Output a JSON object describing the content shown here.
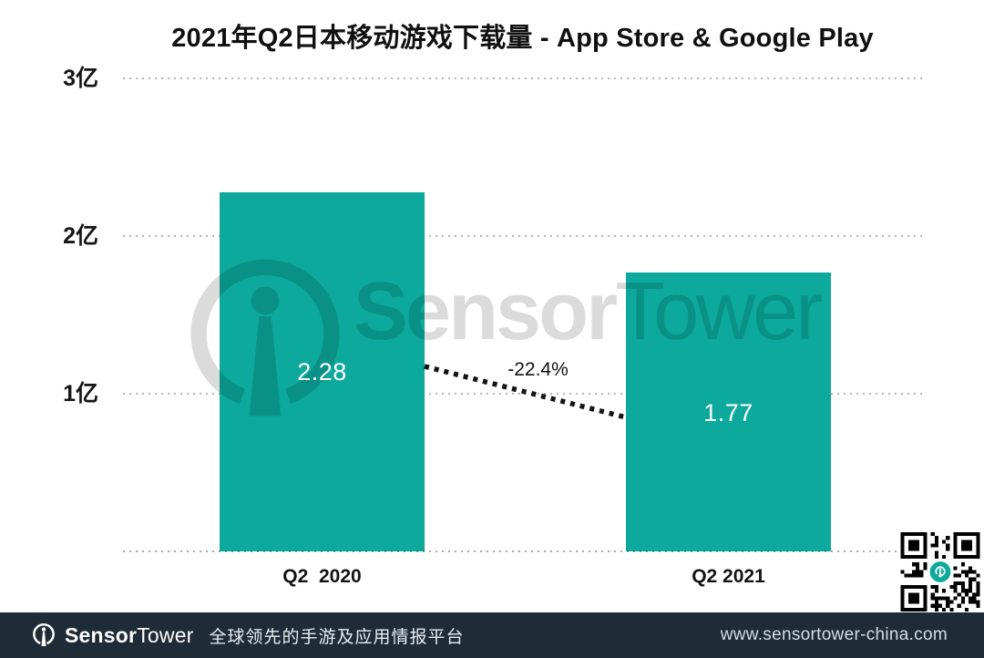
{
  "title": "2021年Q2日本移动游戏下载量 - App Store & Google Play",
  "chart_data": {
    "type": "bar",
    "title": "2021年Q2日本移动游戏下载量 - App Store & Google Play",
    "categories": [
      "Q2  2020",
      "Q2 2021"
    ],
    "values": [
      2.28,
      1.77
    ],
    "value_labels": [
      "2.28",
      "1.77"
    ],
    "unit": "亿",
    "change_label": "-22.4%",
    "y_ticks": [
      "3亿",
      "2亿",
      "1亿"
    ],
    "ylim": [
      0,
      3
    ],
    "grid": "dotted horizontal gridlines at 1亿, 2亿, 3亿 and baseline",
    "legend": "none",
    "bar_color": "#0ca99c"
  },
  "watermark": {
    "brand_bold": "Sensor",
    "brand_light": "Tower"
  },
  "footer": {
    "brand_bold": "Sensor",
    "brand_light": "Tower",
    "tagline": "全球领先的手游及应用情报平台",
    "url": "www.sensortower-china.com",
    "bg_color": "#1f2b37"
  },
  "colors": {
    "bar": "#0ca99c",
    "grid": "#b5b5b5",
    "trend_line": "#141414",
    "footer_bg": "#1f2b37",
    "qr_logo": "#0ca99c"
  }
}
